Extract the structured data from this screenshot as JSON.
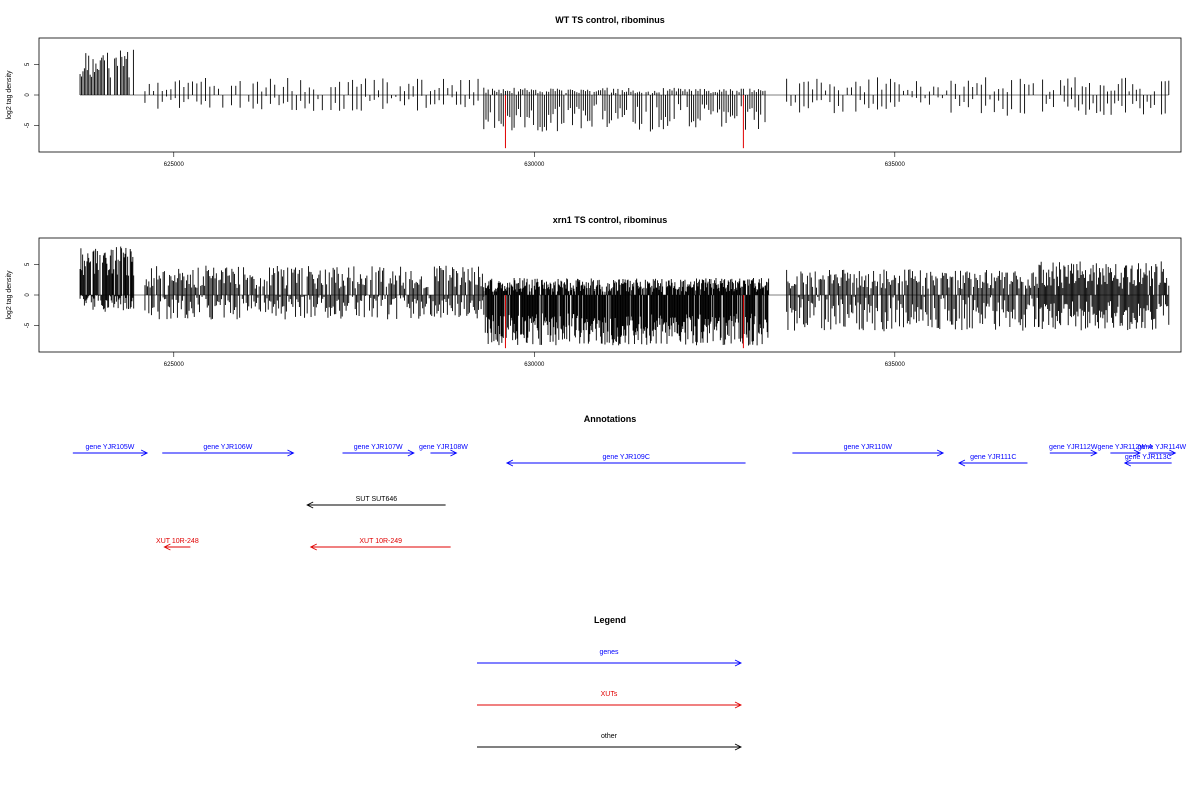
{
  "chart_data": [
    {
      "type": "bar",
      "title": "WT TS control, ribominus",
      "ylabel": "log2 tag density",
      "xlim": [
        623200,
        638900
      ],
      "ylim": [
        -9,
        9
      ],
      "x_ticks": [
        625000,
        630000,
        635000
      ],
      "x_tick_labels": [
        "625000",
        "630000",
        "635000"
      ],
      "y_ticks": [
        5,
        0,
        -5
      ],
      "y_tick_labels": [
        "5",
        "0",
        "-5"
      ],
      "colors": {
        "bars": "#000000",
        "markers": "#e00000"
      },
      "markers": [
        {
          "x": 629600,
          "y": -8.7
        },
        {
          "x": 632900,
          "y": -8.7
        }
      ],
      "segments": [
        {
          "start": 623700,
          "end": 624450,
          "step": 20,
          "pos": [
            2.5,
            7.5
          ],
          "neg": [
            0,
            0
          ],
          "seed": 1
        },
        {
          "start": 624600,
          "end": 629250,
          "step": 60,
          "pos": [
            0.4,
            2.8
          ],
          "neg": [
            0,
            2.6
          ],
          "seed": 2
        },
        {
          "start": 629300,
          "end": 633200,
          "step": 30,
          "pos": [
            0.3,
            1.2
          ],
          "neg": [
            1.5,
            6
          ],
          "seed": 3
        },
        {
          "start": 633500,
          "end": 636950,
          "step": 60,
          "pos": [
            0.4,
            2.9
          ],
          "neg": [
            0,
            3.4
          ],
          "seed": 4
        },
        {
          "start": 637050,
          "end": 638800,
          "step": 50,
          "pos": [
            0.5,
            3
          ],
          "neg": [
            0.5,
            3.5
          ],
          "seed": 5
        }
      ]
    },
    {
      "type": "bar",
      "title": "xrn1 TS control, ribominus",
      "ylabel": "log2 tag density",
      "xlim": [
        623200,
        638900
      ],
      "ylim": [
        -9,
        9
      ],
      "x_ticks": [
        625000,
        630000,
        635000
      ],
      "x_tick_labels": [
        "625000",
        "630000",
        "635000"
      ],
      "y_ticks": [
        5,
        0,
        -5
      ],
      "y_tick_labels": [
        "5",
        "0",
        "-5"
      ],
      "colors": {
        "bars": "#000000",
        "markers": "#e00000"
      },
      "markers": [
        {
          "x": 629600,
          "y": -8.7
        },
        {
          "x": 632900,
          "y": -8.7
        }
      ],
      "segments": [
        {
          "start": 623700,
          "end": 624450,
          "step": 12,
          "pos": [
            3,
            8
          ],
          "neg": [
            0,
            2.8
          ],
          "seed": 11
        },
        {
          "start": 624600,
          "end": 629300,
          "step": 18,
          "pos": [
            1,
            4.8
          ],
          "neg": [
            0,
            4
          ],
          "seed": 12
        },
        {
          "start": 629300,
          "end": 633250,
          "step": 10,
          "pos": [
            0.5,
            2.8
          ],
          "neg": [
            3,
            8.3
          ],
          "seed": 13
        },
        {
          "start": 633500,
          "end": 637000,
          "step": 18,
          "pos": [
            1,
            4.2
          ],
          "neg": [
            0,
            6
          ],
          "seed": 14
        },
        {
          "start": 637000,
          "end": 638800,
          "step": 15,
          "pos": [
            1,
            5.5
          ],
          "neg": [
            1,
            5.8
          ],
          "seed": 15
        }
      ]
    }
  ],
  "annotations": {
    "title": "Annotations",
    "colors": {
      "gene": "#0000ff",
      "xut": "#e00000",
      "other": "#000000"
    },
    "features": [
      {
        "label": "gene YJR105W",
        "start": 623600,
        "end": 624630,
        "strand": "+",
        "row": 0,
        "kind": "gene"
      },
      {
        "label": "gene YJR106W",
        "start": 624840,
        "end": 626660,
        "strand": "+",
        "row": 0,
        "kind": "gene"
      },
      {
        "label": "gene YJR107W",
        "start": 627340,
        "end": 628330,
        "strand": "+",
        "row": 0,
        "kind": "gene"
      },
      {
        "label": "gene YJR108W",
        "start": 628560,
        "end": 628920,
        "strand": "+",
        "row": 0,
        "kind": "gene"
      },
      {
        "label": "gene YJR109C",
        "start": 629620,
        "end": 632930,
        "strand": "-",
        "row": 1,
        "kind": "gene"
      },
      {
        "label": "gene YJR110W",
        "start": 633580,
        "end": 635670,
        "strand": "+",
        "row": 0,
        "kind": "gene"
      },
      {
        "label": "gene YJR111C",
        "start": 635890,
        "end": 636840,
        "strand": "-",
        "row": 1,
        "kind": "gene"
      },
      {
        "label": "gene YJR112W",
        "start": 637150,
        "end": 637800,
        "strand": "+",
        "row": 0,
        "kind": "gene"
      },
      {
        "label": "gene YJR112W-A",
        "start": 637990,
        "end": 638400,
        "strand": "+",
        "row": 0,
        "kind": "gene"
      },
      {
        "label": "gene YJR114W",
        "start": 638520,
        "end": 638890,
        "strand": "+",
        "row": 0,
        "kind": "gene"
      },
      {
        "label": "gene YJR113C",
        "start": 638190,
        "end": 638840,
        "strand": "-",
        "row": 1,
        "kind": "gene"
      },
      {
        "label": "SUT SUT646",
        "start": 626850,
        "end": 628770,
        "strand": "-",
        "row": 2,
        "kind": "other"
      },
      {
        "label": "XUT 10R-248",
        "start": 624870,
        "end": 625230,
        "strand": "-",
        "row": 3,
        "kind": "xut"
      },
      {
        "label": "XUT 10R-249",
        "start": 626900,
        "end": 628840,
        "strand": "-",
        "row": 3,
        "kind": "xut"
      }
    ]
  },
  "legend": {
    "title": "Legend",
    "items": [
      {
        "label": "genes",
        "color": "#0000ff"
      },
      {
        "label": "XUTs",
        "color": "#e00000"
      },
      {
        "label": "other",
        "color": "#000000"
      }
    ]
  }
}
